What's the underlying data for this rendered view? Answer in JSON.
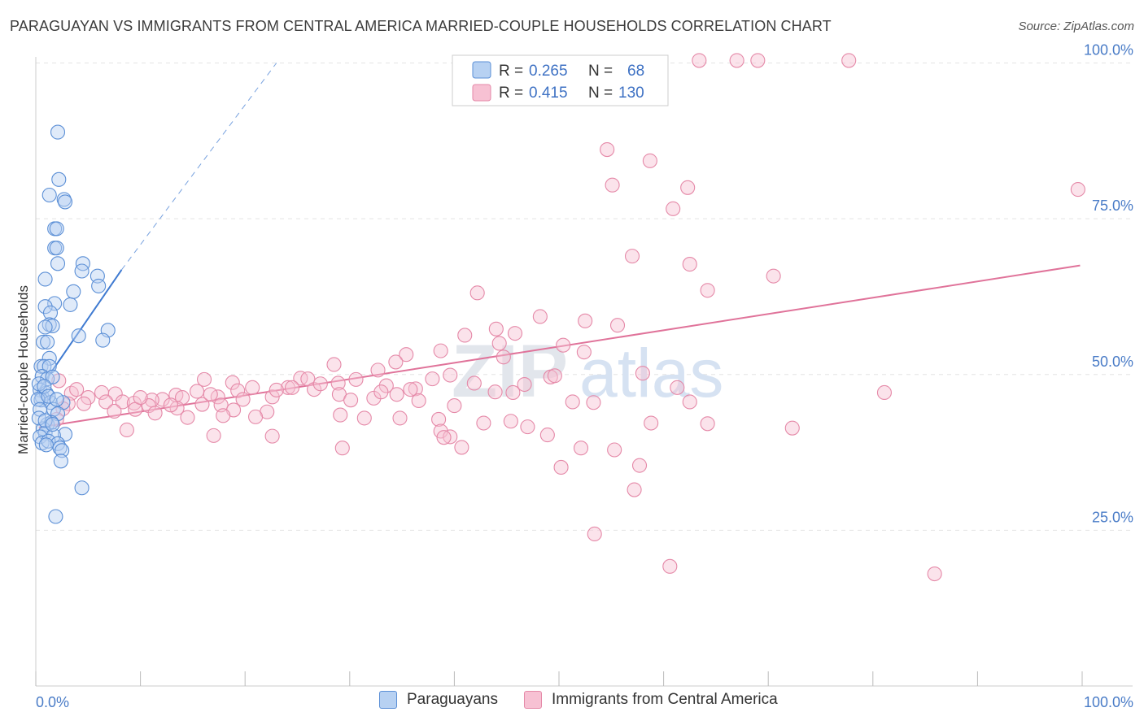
{
  "header": {
    "title": "PARAGUAYAN VS IMMIGRANTS FROM CENTRAL AMERICA MARRIED-COUPLE HOUSEHOLDS CORRELATION CHART",
    "source": "Source: ZipAtlas.com"
  },
  "watermark": {
    "part1": "ZIP",
    "part2": "atlas"
  },
  "legend_box": {
    "rows": [
      {
        "r_label": "R =",
        "r_value": "0.265",
        "n_label": "N =",
        "n_value": "68"
      },
      {
        "r_label": "R =",
        "r_value": "0.415",
        "n_label": "N =",
        "n_value": "130"
      }
    ]
  },
  "colors": {
    "paraguayans_fill": "#b7d1f2",
    "paraguayans_stroke": "#5b8fd6",
    "paraguayans_line": "#3f7ad1",
    "central_fill": "#f7c1d3",
    "central_stroke": "#e589a8",
    "central_line": "#e0739a",
    "tick_label": "#4a7cc7",
    "grid": "#e3e3e3"
  },
  "chart_data": {
    "type": "scatter",
    "title": "PARAGUAYAN VS IMMIGRANTS FROM CENTRAL AMERICA MARRIED-COUPLE HOUSEHOLDS CORRELATION CHART",
    "ylabel": "Married-couple Households",
    "xlabel": "",
    "x_tick_labels": [
      "0.0%",
      "100.0%"
    ],
    "y_tick_labels": [
      "25.0%",
      "50.0%",
      "75.0%",
      "100.0%"
    ],
    "xlim": [
      0,
      100
    ],
    "ylim": [
      0,
      103
    ],
    "grid": true,
    "legend_position": "bottom",
    "series": [
      {
        "name": "Paraguayans",
        "r": 0.265,
        "n": 68,
        "trend": {
          "x": [
            0.3,
            8.2
          ],
          "y": [
            47.5,
            66.8
          ],
          "extended_to": [
            23,
            100
          ]
        },
        "points": [
          [
            2.1,
            88.9
          ],
          [
            2.2,
            81.3
          ],
          [
            1.3,
            78.8
          ],
          [
            2.7,
            78.1
          ],
          [
            2.8,
            77.7
          ],
          [
            1.8,
            73.4
          ],
          [
            2.0,
            73.4
          ],
          [
            1.8,
            70.3
          ],
          [
            2.0,
            70.3
          ],
          [
            2.1,
            67.8
          ],
          [
            4.5,
            67.8
          ],
          [
            4.4,
            66.6
          ],
          [
            0.9,
            65.3
          ],
          [
            5.9,
            65.8
          ],
          [
            6.0,
            64.2
          ],
          [
            3.6,
            63.3
          ],
          [
            1.8,
            61.4
          ],
          [
            0.9,
            60.9
          ],
          [
            3.3,
            61.2
          ],
          [
            1.4,
            59.9
          ],
          [
            1.3,
            58.0
          ],
          [
            1.6,
            57.8
          ],
          [
            0.9,
            57.6
          ],
          [
            6.9,
            57.1
          ],
          [
            4.1,
            56.2
          ],
          [
            6.4,
            55.5
          ],
          [
            0.7,
            55.2
          ],
          [
            1.1,
            55.2
          ],
          [
            1.3,
            52.6
          ],
          [
            0.5,
            51.3
          ],
          [
            0.8,
            51.3
          ],
          [
            1.3,
            51.3
          ],
          [
            0.6,
            49.7
          ],
          [
            1.1,
            49.3
          ],
          [
            1.6,
            49.6
          ],
          [
            0.4,
            47.5
          ],
          [
            0.6,
            46.4
          ],
          [
            1.0,
            47.0
          ],
          [
            0.5,
            45.9
          ],
          [
            1.4,
            45.5
          ],
          [
            2.6,
            45.5
          ],
          [
            0.2,
            46.0
          ],
          [
            0.4,
            44.4
          ],
          [
            1.7,
            44.4
          ],
          [
            2.1,
            43.7
          ],
          [
            1.1,
            42.0
          ],
          [
            1.5,
            42.3
          ],
          [
            0.7,
            41.3
          ],
          [
            0.9,
            40.6
          ],
          [
            2.8,
            40.4
          ],
          [
            0.4,
            40.0
          ],
          [
            1.7,
            40.2
          ],
          [
            0.6,
            39.0
          ],
          [
            1.2,
            39.3
          ],
          [
            2.1,
            38.9
          ],
          [
            2.3,
            38.2
          ],
          [
            2.5,
            37.8
          ],
          [
            2.4,
            36.1
          ],
          [
            4.4,
            31.8
          ],
          [
            1.9,
            27.2
          ],
          [
            0.3,
            48.5
          ],
          [
            0.8,
            48.1
          ],
          [
            1.2,
            46.5
          ],
          [
            2.0,
            46.0
          ],
          [
            0.3,
            43.0
          ],
          [
            0.9,
            42.6
          ],
          [
            1.6,
            42.0
          ],
          [
            1.0,
            38.7
          ]
        ]
      },
      {
        "name": "Immigrants from Central America",
        "r": 0.415,
        "n": 130,
        "trend": {
          "x": [
            0.3,
            99.8
          ],
          "y": [
            41.5,
            67.5
          ]
        },
        "points": [
          [
            63.4,
            100.4
          ],
          [
            67.0,
            100.4
          ],
          [
            69.0,
            100.4
          ],
          [
            77.7,
            100.4
          ],
          [
            54.6,
            86.1
          ],
          [
            58.7,
            84.3
          ],
          [
            55.1,
            80.4
          ],
          [
            62.3,
            80.0
          ],
          [
            99.6,
            79.7
          ],
          [
            60.9,
            76.6
          ],
          [
            57.0,
            69.0
          ],
          [
            62.5,
            67.7
          ],
          [
            70.5,
            65.8
          ],
          [
            64.2,
            63.5
          ],
          [
            42.2,
            63.1
          ],
          [
            48.2,
            59.3
          ],
          [
            52.5,
            58.6
          ],
          [
            55.6,
            57.9
          ],
          [
            44.0,
            57.3
          ],
          [
            45.8,
            56.6
          ],
          [
            41.0,
            56.3
          ],
          [
            44.3,
            55.0
          ],
          [
            38.7,
            53.8
          ],
          [
            50.4,
            54.7
          ],
          [
            52.4,
            53.6
          ],
          [
            44.7,
            52.8
          ],
          [
            35.4,
            53.2
          ],
          [
            34.4,
            52.0
          ],
          [
            28.5,
            51.6
          ],
          [
            32.7,
            50.7
          ],
          [
            58.0,
            50.2
          ],
          [
            49.2,
            49.6
          ],
          [
            39.6,
            49.9
          ],
          [
            16.1,
            49.2
          ],
          [
            25.3,
            49.4
          ],
          [
            26.0,
            49.3
          ],
          [
            30.6,
            49.2
          ],
          [
            37.9,
            49.3
          ],
          [
            18.8,
            48.7
          ],
          [
            28.9,
            48.6
          ],
          [
            33.5,
            48.2
          ],
          [
            61.3,
            47.9
          ],
          [
            24.1,
            47.9
          ],
          [
            24.5,
            47.9
          ],
          [
            26.6,
            47.6
          ],
          [
            36.3,
            47.7
          ],
          [
            19.3,
            47.4
          ],
          [
            15.4,
            47.3
          ],
          [
            3.4,
            47.0
          ],
          [
            6.3,
            47.1
          ],
          [
            7.6,
            46.9
          ],
          [
            43.9,
            47.2
          ],
          [
            45.6,
            47.1
          ],
          [
            81.1,
            47.1
          ],
          [
            34.5,
            46.8
          ],
          [
            29.0,
            46.8
          ],
          [
            13.4,
            46.7
          ],
          [
            17.4,
            46.4
          ],
          [
            22.6,
            46.4
          ],
          [
            5.0,
            46.3
          ],
          [
            14.0,
            46.3
          ],
          [
            12.1,
            46.0
          ],
          [
            19.8,
            46.0
          ],
          [
            11.1,
            45.9
          ],
          [
            30.1,
            45.9
          ],
          [
            32.3,
            46.2
          ],
          [
            6.7,
            45.6
          ],
          [
            8.3,
            45.6
          ],
          [
            9.4,
            45.4
          ],
          [
            4.6,
            45.3
          ],
          [
            3.1,
            45.3
          ],
          [
            15.9,
            45.2
          ],
          [
            17.7,
            45.1
          ],
          [
            10.8,
            45.0
          ],
          [
            13.5,
            44.6
          ],
          [
            2.6,
            44.5
          ],
          [
            18.9,
            44.3
          ],
          [
            7.5,
            44.1
          ],
          [
            22.1,
            44.0
          ],
          [
            11.4,
            43.8
          ],
          [
            17.9,
            43.4
          ],
          [
            29.1,
            43.5
          ],
          [
            21.0,
            43.2
          ],
          [
            14.5,
            43.1
          ],
          [
            31.4,
            43.0
          ],
          [
            2.0,
            42.8
          ],
          [
            34.8,
            43.0
          ],
          [
            38.5,
            42.8
          ],
          [
            45.4,
            42.5
          ],
          [
            42.8,
            42.2
          ],
          [
            47.0,
            41.6
          ],
          [
            58.8,
            42.2
          ],
          [
            64.2,
            42.1
          ],
          [
            72.3,
            41.4
          ],
          [
            38.7,
            40.9
          ],
          [
            48.9,
            40.3
          ],
          [
            39.6,
            40.0
          ],
          [
            22.6,
            40.1
          ],
          [
            17.0,
            40.2
          ],
          [
            39.0,
            39.9
          ],
          [
            40.7,
            38.3
          ],
          [
            52.1,
            38.2
          ],
          [
            55.3,
            37.9
          ],
          [
            57.7,
            35.4
          ],
          [
            50.2,
            35.1
          ],
          [
            57.2,
            31.5
          ],
          [
            53.4,
            24.4
          ],
          [
            60.6,
            19.2
          ],
          [
            85.9,
            18.0
          ],
          [
            29.3,
            38.2
          ],
          [
            8.7,
            41.1
          ],
          [
            9.5,
            44.4
          ],
          [
            12.9,
            45.1
          ],
          [
            10.0,
            46.3
          ],
          [
            36.6,
            45.8
          ],
          [
            40.0,
            45.0
          ],
          [
            51.3,
            45.6
          ],
          [
            53.3,
            45.5
          ],
          [
            62.5,
            45.6
          ],
          [
            16.7,
            46.8
          ],
          [
            23.0,
            47.5
          ],
          [
            27.2,
            48.5
          ],
          [
            2.2,
            49.0
          ],
          [
            3.9,
            47.6
          ],
          [
            41.9,
            48.6
          ],
          [
            49.6,
            49.8
          ],
          [
            20.7,
            47.9
          ],
          [
            33.0,
            47.2
          ],
          [
            46.7,
            48.4
          ],
          [
            35.8,
            47.6
          ]
        ]
      }
    ]
  },
  "bottom_legend": {
    "items": [
      {
        "label": "Paraguayans"
      },
      {
        "label": "Immigrants from Central America"
      }
    ]
  }
}
